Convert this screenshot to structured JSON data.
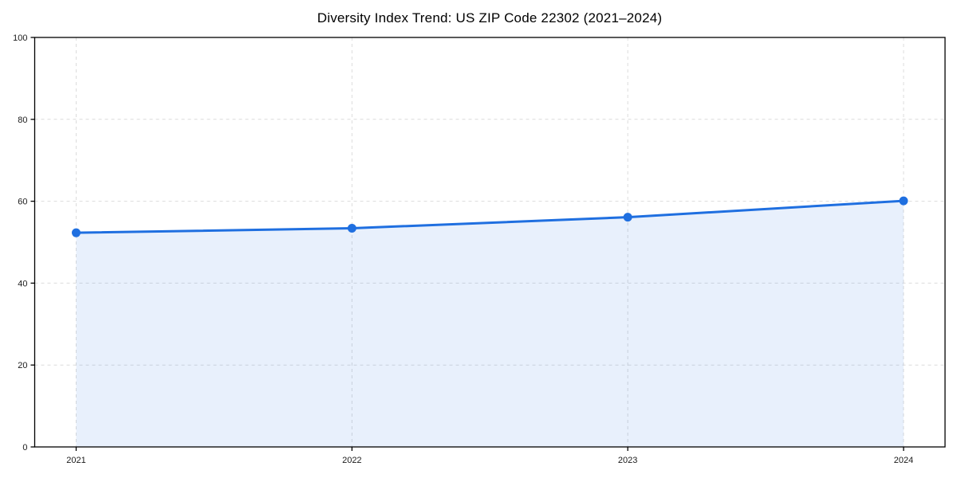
{
  "chart_data": {
    "type": "area",
    "title": "Diversity Index Trend: US ZIP Code 22302 (2021–2024)",
    "x": [
      2021,
      2022,
      2023,
      2024
    ],
    "series": [
      {
        "name": "Diversity Index",
        "values": [
          52.3,
          53.4,
          56.1,
          60.1
        ]
      }
    ],
    "xlabel": "",
    "ylabel": "",
    "ylim": [
      0,
      100
    ],
    "yticks": [
      0,
      20,
      40,
      60,
      80,
      100
    ],
    "grid": "dashed, horizontal and vertical",
    "legend": "none",
    "colors": {
      "line": "#1f6fe0",
      "marker": "#1f6fe0",
      "fill_rgba": "rgba(31,111,224,0.10)",
      "gridline": "#dcdcdc",
      "axis": "#000000",
      "tick_label": "#1a1a1a",
      "title": "#000000",
      "background": "#ffffff"
    }
  }
}
